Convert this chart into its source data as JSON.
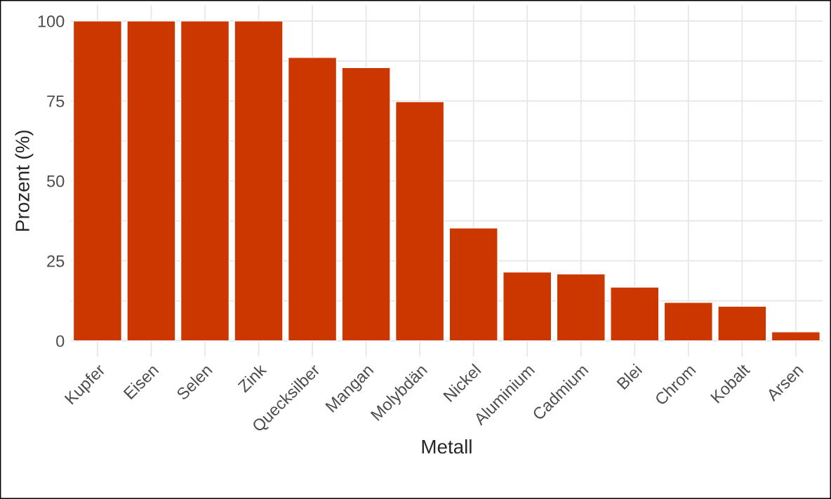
{
  "chart_data": {
    "type": "bar",
    "xlabel": "Metall",
    "ylabel": "Prozent (%)",
    "categories": [
      "Kupfer",
      "Eisen",
      "Selen",
      "Zink",
      "Quecksilber",
      "Mangan",
      "Molybdän",
      "Nickel",
      "Aluminium",
      "Cadmium",
      "Blei",
      "Chrom",
      "Kobalt",
      "Arsen"
    ],
    "values": [
      100,
      100,
      100,
      100,
      88.6,
      85.4,
      74.8,
      35.3,
      21.5,
      20.9,
      16.8,
      12.0,
      10.8,
      2.8
    ],
    "color": "#cc3700",
    "ylim": [
      -5,
      105
    ],
    "yticks": [
      0,
      {
        "value": 12.5,
        "label": null
      },
      25,
      {
        "value": 37.5,
        "label": null
      },
      50,
      {
        "value": 62.5,
        "label": null
      },
      75,
      {
        "value": 87.5,
        "label": null
      },
      100
    ],
    "grid": true
  }
}
